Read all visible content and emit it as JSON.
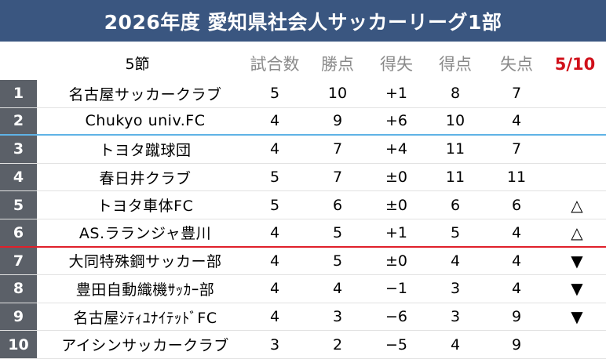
{
  "title": "2026年度 愛知県社会人サッカーリーグ1部",
  "header": {
    "round": "5節",
    "played": "試合数",
    "points": "勝点",
    "goal_diff": "得失",
    "goals_for": "得点",
    "goals_against": "失点",
    "date": "5/10"
  },
  "rows": [
    {
      "rank": "1",
      "team": "名古屋サッカークラブ",
      "played": "5",
      "points": "10",
      "goal_diff": "+1",
      "goals_for": "8",
      "goals_against": "7",
      "mark": ""
    },
    {
      "rank": "2",
      "team": "Chukyo univ.FC",
      "played": "4",
      "points": "9",
      "goal_diff": "+6",
      "goals_for": "10",
      "goals_against": "4",
      "mark": ""
    },
    {
      "rank": "3",
      "team": "トヨタ蹴球団",
      "played": "4",
      "points": "7",
      "goal_diff": "+4",
      "goals_for": "11",
      "goals_against": "7",
      "mark": ""
    },
    {
      "rank": "4",
      "team": "春日井クラブ",
      "played": "5",
      "points": "7",
      "goal_diff": "±0",
      "goals_for": "11",
      "goals_against": "11",
      "mark": ""
    },
    {
      "rank": "5",
      "team": "トヨタ車体FC",
      "played": "5",
      "points": "6",
      "goal_diff": "±0",
      "goals_for": "6",
      "goals_against": "6",
      "mark": "△"
    },
    {
      "rank": "6",
      "team": "AS.ラランジャ豊川",
      "played": "4",
      "points": "5",
      "goal_diff": "+1",
      "goals_for": "5",
      "goals_against": "4",
      "mark": "△"
    },
    {
      "rank": "7",
      "team": "大同特殊鋼サッカー部",
      "played": "4",
      "points": "5",
      "goal_diff": "±0",
      "goals_for": "4",
      "goals_against": "4",
      "mark": "▼"
    },
    {
      "rank": "8",
      "team": "豊田自動織機ｻｯｶｰ部",
      "played": "4",
      "points": "4",
      "goal_diff": "−1",
      "goals_for": "3",
      "goals_against": "4",
      "mark": "▼"
    },
    {
      "rank": "9",
      "team": "名古屋ｼﾃｨﾕﾅｲﾃｯﾄﾞFC",
      "played": "4",
      "points": "3",
      "goal_diff": "−6",
      "goals_for": "3",
      "goals_against": "9",
      "mark": "▼"
    },
    {
      "rank": "10",
      "team": "アイシンサッカークラブ",
      "played": "3",
      "points": "2",
      "goal_diff": "−5",
      "goals_for": "4",
      "goals_against": "9",
      "mark": ""
    }
  ]
}
